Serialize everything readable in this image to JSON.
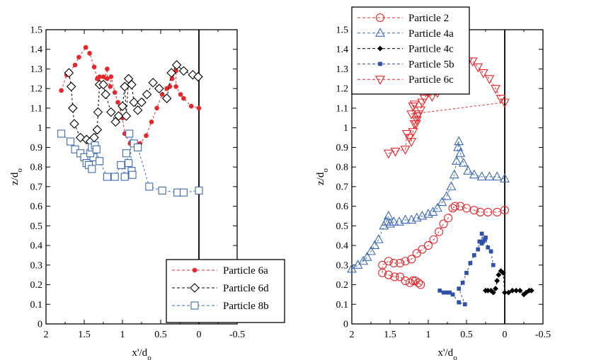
{
  "chart_data": [
    {
      "type": "scatter",
      "xlabel": "x'/d",
      "xlabel_sub": "o",
      "ylabel": "z/d",
      "ylabel_sub": "o",
      "xlim": [
        2,
        -0.5
      ],
      "ylim": [
        0,
        1.5
      ],
      "x_reversed": true,
      "xticks": [
        2,
        1.5,
        1,
        0.5,
        0,
        -0.5
      ],
      "xtick_labels": [
        "2",
        "1.5",
        "1",
        "0.5",
        "0",
        "-0.5"
      ],
      "yticks": [
        0,
        0.1,
        0.2,
        0.3,
        0.4,
        0.5,
        0.6,
        0.7,
        0.8,
        0.9,
        1,
        1.1,
        1.2,
        1.3,
        1.4,
        1.5
      ],
      "ytick_labels": [
        "0",
        "0.1",
        "0.2",
        "0.3",
        "0.4",
        "0.5",
        "0.6",
        "0.7",
        "0.8",
        "0.9",
        "1",
        "1.1",
        "1.2",
        "1.3",
        "1.4",
        "1.5"
      ],
      "vline_x": 0,
      "legend_position": "bottom-right",
      "series": [
        {
          "name": "Particle 6a",
          "color": "#e8262a",
          "marker": "filled-circle",
          "points": [
            [
              1.8,
              1.19
            ],
            [
              1.73,
              1.27
            ],
            [
              1.62,
              1.32
            ],
            [
              1.57,
              1.36
            ],
            [
              1.48,
              1.41
            ],
            [
              1.43,
              1.38
            ],
            [
              1.37,
              1.31
            ],
            [
              1.33,
              1.25
            ],
            [
              1.3,
              1.22
            ],
            [
              1.3,
              1.26
            ],
            [
              1.25,
              1.26
            ],
            [
              1.25,
              1.22
            ],
            [
              1.2,
              1.3
            ],
            [
              1.2,
              1.25
            ],
            [
              1.16,
              1.21
            ],
            [
              1.15,
              1.26
            ],
            [
              1.1,
              1.18
            ],
            [
              1.06,
              1.13
            ],
            [
              1.0,
              1.05
            ],
            [
              0.97,
              0.97
            ],
            [
              0.9,
              0.92
            ],
            [
              0.84,
              0.91
            ],
            [
              0.77,
              0.92
            ],
            [
              0.69,
              0.96
            ],
            [
              0.62,
              1.03
            ],
            [
              0.55,
              1.1
            ],
            [
              0.48,
              1.17
            ],
            [
              0.42,
              1.2
            ],
            [
              0.38,
              1.21
            ],
            [
              0.35,
              1.25
            ],
            [
              0.3,
              1.29
            ],
            [
              0.3,
              1.21
            ],
            [
              0.24,
              1.17
            ],
            [
              0.2,
              1.15
            ],
            [
              0.1,
              1.11
            ],
            [
              0.0,
              1.1
            ]
          ]
        },
        {
          "name": "Particle 6d",
          "color": "#000000",
          "marker": "open-diamond",
          "points": [
            [
              1.7,
              1.28
            ],
            [
              1.67,
              1.21
            ],
            [
              1.65,
              1.1
            ],
            [
              1.63,
              1.02
            ],
            [
              1.55,
              0.95
            ],
            [
              1.47,
              0.94
            ],
            [
              1.42,
              0.93
            ],
            [
              1.37,
              0.95
            ],
            [
              1.33,
              0.99
            ],
            [
              1.32,
              1.08
            ],
            [
              1.3,
              1.22
            ],
            [
              1.25,
              1.22
            ],
            [
              1.22,
              1.17
            ],
            [
              1.15,
              1.08
            ],
            [
              1.09,
              1.03
            ],
            [
              1.05,
              1.06
            ],
            [
              1.0,
              1.11
            ],
            [
              0.97,
              1.21
            ],
            [
              0.95,
              1.06
            ],
            [
              0.92,
              1.25
            ],
            [
              0.88,
              1.22
            ],
            [
              0.85,
              1.13
            ],
            [
              0.8,
              1.09
            ],
            [
              0.75,
              1.13
            ],
            [
              0.68,
              1.17
            ],
            [
              0.6,
              1.23
            ],
            [
              0.52,
              1.2
            ],
            [
              0.42,
              1.15
            ],
            [
              0.36,
              1.28
            ],
            [
              0.29,
              1.32
            ],
            [
              0.2,
              1.29
            ],
            [
              0.08,
              1.27
            ],
            [
              0.01,
              1.26
            ]
          ]
        },
        {
          "name": "Particle 8b",
          "color": "#3d6ab4",
          "marker": "open-square",
          "points": [
            [
              1.8,
              0.97
            ],
            [
              1.68,
              0.93
            ],
            [
              1.62,
              0.89
            ],
            [
              1.55,
              0.87
            ],
            [
              1.5,
              0.85
            ],
            [
              1.47,
              0.82
            ],
            [
              1.44,
              0.81
            ],
            [
              1.4,
              0.79
            ],
            [
              1.38,
              0.85
            ],
            [
              1.42,
              0.87
            ],
            [
              1.4,
              0.9
            ],
            [
              1.36,
              0.91
            ],
            [
              1.34,
              0.89
            ],
            [
              1.3,
              0.83
            ],
            [
              1.2,
              0.75
            ],
            [
              1.1,
              0.75
            ],
            [
              1.02,
              0.81
            ],
            [
              0.97,
              0.75
            ],
            [
              0.95,
              0.87
            ],
            [
              0.92,
              0.82
            ],
            [
              0.88,
              0.78
            ],
            [
              0.87,
              0.76
            ],
            [
              0.91,
              0.97
            ],
            [
              0.85,
              0.92
            ],
            [
              0.8,
              0.9
            ],
            [
              0.65,
              0.7
            ],
            [
              0.48,
              0.68
            ],
            [
              0.28,
              0.67
            ],
            [
              0.2,
              0.67
            ],
            [
              0.0,
              0.68
            ]
          ]
        }
      ]
    },
    {
      "type": "scatter",
      "xlabel": "x'/d",
      "xlabel_sub": "o",
      "ylabel": "z/d",
      "ylabel_sub": "o",
      "xlim": [
        2,
        -0.5
      ],
      "ylim": [
        0,
        1.5
      ],
      "x_reversed": true,
      "xticks": [
        2,
        1.5,
        1,
        0.5,
        0,
        -0.5
      ],
      "xtick_labels": [
        "2",
        "1.5",
        "1",
        "0.5",
        "0",
        "-0.5"
      ],
      "yticks": [
        0,
        0.1,
        0.2,
        0.3,
        0.4,
        0.5,
        0.6,
        0.7,
        0.8,
        0.9,
        1,
        1.1,
        1.2,
        1.3,
        1.4,
        1.5
      ],
      "ytick_labels": [
        "0",
        "0.1",
        "0.2",
        "0.3",
        "0.4",
        "0.5",
        "0.6",
        "0.7",
        "0.8",
        "0.9",
        "1",
        "1.1",
        "1.2",
        "1.3",
        "1.4",
        "1.5"
      ],
      "vline_x": 0,
      "legend_position": "top-left",
      "series": [
        {
          "name": "Particle 2",
          "color": "#e8262a",
          "marker": "open-circle",
          "points": [
            [
              1.1,
              0.2
            ],
            [
              1.13,
              0.21
            ],
            [
              1.17,
              0.22
            ],
            [
              1.2,
              0.22
            ],
            [
              1.24,
              0.21
            ],
            [
              1.3,
              0.22
            ],
            [
              1.37,
              0.24
            ],
            [
              1.44,
              0.24
            ],
            [
              1.52,
              0.25
            ],
            [
              1.6,
              0.26
            ],
            [
              1.6,
              0.3
            ],
            [
              1.52,
              0.32
            ],
            [
              1.45,
              0.31
            ],
            [
              1.37,
              0.31
            ],
            [
              1.3,
              0.32
            ],
            [
              1.22,
              0.33
            ],
            [
              1.15,
              0.36
            ],
            [
              1.08,
              0.38
            ],
            [
              1.0,
              0.4
            ],
            [
              0.93,
              0.43
            ],
            [
              0.86,
              0.47
            ],
            [
              0.8,
              0.51
            ],
            [
              0.74,
              0.54
            ],
            [
              0.68,
              0.59
            ],
            [
              0.65,
              0.6
            ],
            [
              0.58,
              0.6
            ],
            [
              0.5,
              0.59
            ],
            [
              0.4,
              0.58
            ],
            [
              0.32,
              0.57
            ],
            [
              0.22,
              0.57
            ],
            [
              0.1,
              0.57
            ],
            [
              0.0,
              0.58
            ]
          ]
        },
        {
          "name": "Particle 4a",
          "color": "#3d6ab4",
          "marker": "open-triangle-up",
          "points": [
            [
              2.0,
              0.28
            ],
            [
              1.92,
              0.3
            ],
            [
              1.85,
              0.32
            ],
            [
              1.8,
              0.34
            ],
            [
              1.75,
              0.37
            ],
            [
              1.7,
              0.4
            ],
            [
              1.65,
              0.43
            ],
            [
              1.58,
              0.5
            ],
            [
              1.55,
              0.52
            ],
            [
              1.52,
              0.55
            ],
            [
              1.5,
              0.51
            ],
            [
              1.45,
              0.52
            ],
            [
              1.38,
              0.52
            ],
            [
              1.3,
              0.53
            ],
            [
              1.22,
              0.53
            ],
            [
              1.15,
              0.54
            ],
            [
              1.08,
              0.55
            ],
            [
              1.0,
              0.56
            ],
            [
              0.94,
              0.57
            ],
            [
              0.88,
              0.59
            ],
            [
              0.82,
              0.62
            ],
            [
              0.76,
              0.65
            ],
            [
              0.7,
              0.7
            ],
            [
              0.66,
              0.76
            ],
            [
              0.63,
              0.83
            ],
            [
              0.61,
              0.9
            ],
            [
              0.6,
              0.93
            ],
            [
              0.58,
              0.87
            ],
            [
              0.54,
              0.82
            ],
            [
              0.48,
              0.78
            ],
            [
              0.4,
              0.76
            ],
            [
              0.3,
              0.75
            ],
            [
              0.2,
              0.75
            ],
            [
              0.1,
              0.75
            ],
            [
              0.0,
              0.74
            ]
          ]
        },
        {
          "name": "Particle 4c",
          "color": "#000000",
          "marker": "filled-diamond",
          "points": [
            [
              0.25,
              0.17
            ],
            [
              0.22,
              0.17
            ],
            [
              0.18,
              0.17
            ],
            [
              0.15,
              0.16
            ],
            [
              0.12,
              0.18
            ],
            [
              0.1,
              0.22
            ],
            [
              0.08,
              0.25
            ],
            [
              0.05,
              0.27
            ],
            [
              0.02,
              0.26
            ],
            [
              0.0,
              0.16
            ],
            [
              -0.05,
              0.16
            ],
            [
              -0.1,
              0.17
            ],
            [
              -0.15,
              0.17
            ],
            [
              -0.2,
              0.17
            ],
            [
              -0.25,
              0.15
            ],
            [
              -0.28,
              0.16
            ],
            [
              -0.32,
              0.17
            ],
            [
              -0.35,
              0.17
            ]
          ]
        },
        {
          "name": "Particle 5b",
          "color": "#2f4fa8",
          "marker": "filled-square",
          "points": [
            [
              0.85,
              0.17
            ],
            [
              0.8,
              0.16
            ],
            [
              0.76,
              0.16
            ],
            [
              0.72,
              0.16
            ],
            [
              0.68,
              0.15
            ],
            [
              0.6,
              0.11
            ],
            [
              0.52,
              0.1
            ],
            [
              0.6,
              0.18
            ],
            [
              0.55,
              0.21
            ],
            [
              0.5,
              0.26
            ],
            [
              0.45,
              0.31
            ],
            [
              0.4,
              0.35
            ],
            [
              0.35,
              0.38
            ],
            [
              0.33,
              0.42
            ],
            [
              0.3,
              0.41
            ],
            [
              0.3,
              0.46
            ],
            [
              0.28,
              0.42
            ],
            [
              0.26,
              0.43
            ],
            [
              0.25,
              0.44
            ],
            [
              0.22,
              0.39
            ],
            [
              0.18,
              0.37
            ],
            [
              0.15,
              0.3
            ]
          ]
        },
        {
          "name": "Particle 6c",
          "color": "#e8262a",
          "marker": "open-triangle-down",
          "points": [
            [
              1.52,
              0.87
            ],
            [
              1.43,
              0.88
            ],
            [
              1.3,
              0.89
            ],
            [
              1.28,
              0.97
            ],
            [
              1.25,
              0.95
            ],
            [
              1.22,
              0.93
            ],
            [
              1.2,
              0.98
            ],
            [
              1.18,
              1.02
            ],
            [
              1.15,
              1.04
            ],
            [
              1.13,
              1.07
            ],
            [
              1.1,
              1.09
            ],
            [
              1.08,
              1.13
            ],
            [
              1.05,
              1.15
            ],
            [
              1.0,
              1.18
            ],
            [
              0.95,
              1.16
            ],
            [
              0.88,
              1.18
            ],
            [
              0.82,
              1.2
            ],
            [
              0.78,
              1.23
            ],
            [
              0.7,
              1.27
            ],
            [
              0.62,
              1.31
            ],
            [
              0.55,
              1.33
            ],
            [
              0.48,
              1.34
            ],
            [
              0.42,
              1.34
            ],
            [
              0.35,
              1.31
            ],
            [
              0.28,
              1.28
            ],
            [
              0.2,
              1.25
            ],
            [
              0.12,
              1.2
            ],
            [
              0.05,
              1.15
            ],
            [
              0.0,
              1.13
            ],
            [
              1.22,
              1.07
            ],
            [
              1.18,
              1.12
            ],
            [
              1.2,
              1.11
            ],
            [
              1.16,
              1.02
            ],
            [
              1.14,
              1.06
            ]
          ]
        }
      ]
    }
  ]
}
